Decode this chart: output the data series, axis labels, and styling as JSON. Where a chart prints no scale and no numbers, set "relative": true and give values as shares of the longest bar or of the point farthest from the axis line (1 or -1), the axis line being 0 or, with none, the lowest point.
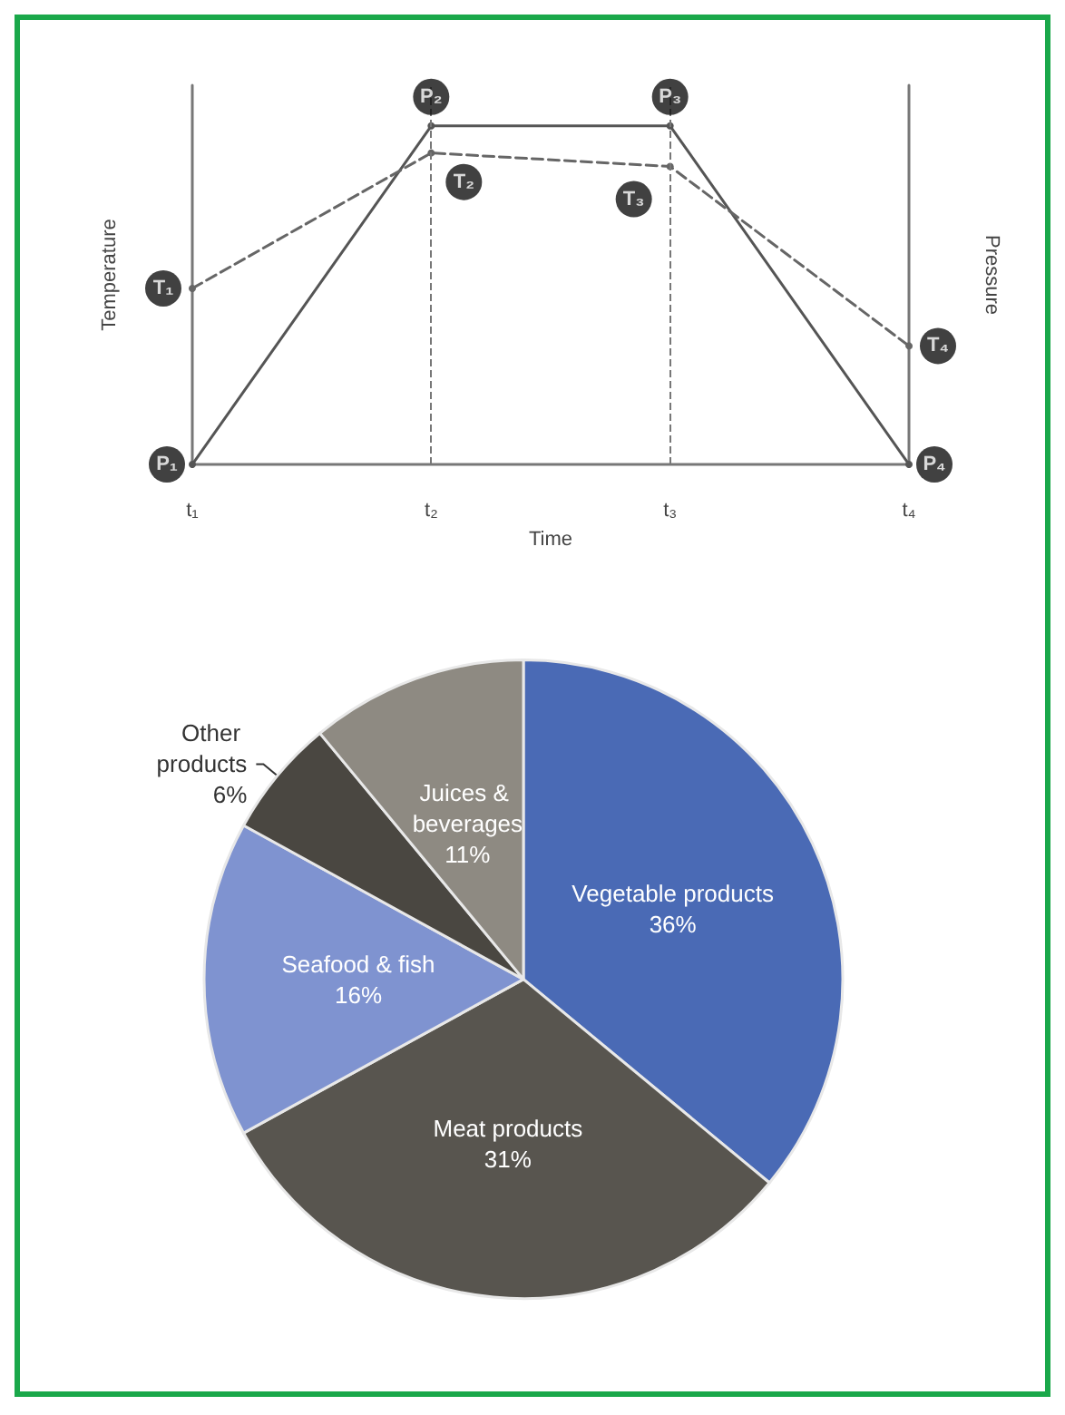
{
  "chart_data": [
    {
      "type": "line",
      "relative": true,
      "xlabel": "Time",
      "ylabel": "Temperature",
      "y2label": "Pressure",
      "categories": [
        "t₁",
        "t₂",
        "t₃",
        "t₄"
      ],
      "tick_labels": "x",
      "legend": false,
      "grid": false,
      "marker": "circle",
      "series": [
        {
          "color": "#555555",
          "values": [
            0,
            1,
            1,
            0
          ],
          "line_style": "solid"
        },
        {
          "color": "#666666",
          "values": [
            0.52,
            0.92,
            0.88,
            0.35
          ],
          "line_style": "dashed"
        }
      ],
      "ref_lines": [
        {
          "axis": "x",
          "value": "t₂",
          "line_style": "dashed",
          "color": "#777777"
        },
        {
          "axis": "x",
          "value": "t₃",
          "line_style": "dashed",
          "color": "#777777"
        }
      ],
      "annotations": [
        {
          "text": "P₁",
          "x": "t₁",
          "y": 0
        },
        {
          "text": "P₂",
          "x": "t₂",
          "y": 1
        },
        {
          "text": "P₃",
          "x": "t₃",
          "y": 1
        },
        {
          "text": "P₄",
          "x": "t₄",
          "y": 0
        },
        {
          "text": "T₁",
          "x": "t₁",
          "y": 0.52
        },
        {
          "text": "T₂",
          "x": "t₂",
          "y": 0.92
        },
        {
          "text": "T₃",
          "x": "t₃",
          "y": 0.88
        },
        {
          "text": "T₄",
          "x": "t₄",
          "y": 0.35
        }
      ]
    },
    {
      "type": "pie",
      "categories": [
        "Vegetable products",
        "Meat products",
        "Seafood & fish",
        "Other products",
        "Juices & beverages"
      ],
      "values": [
        36,
        31,
        16,
        6,
        11
      ],
      "colors": [
        "#4a6ab5",
        "#58554f",
        "#7f93d0",
        "#4a4741",
        "#8e8a82"
      ],
      "value_labels": [
        "36%",
        "31%",
        "16%",
        "6%",
        "11%"
      ],
      "legend": false
    }
  ]
}
